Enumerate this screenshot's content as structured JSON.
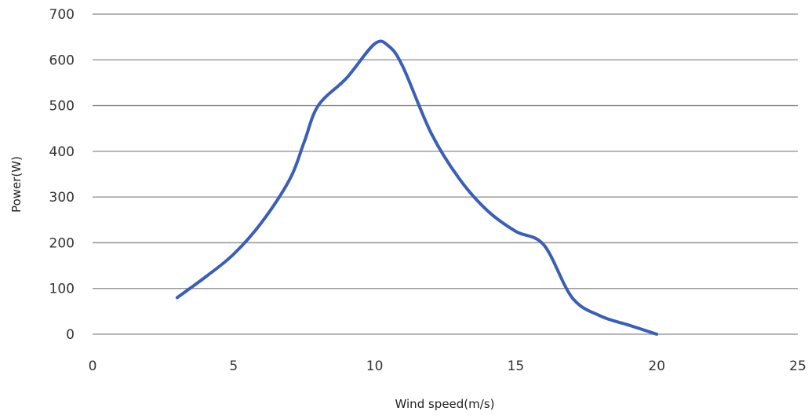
{
  "chart_data": {
    "type": "line",
    "title": "",
    "xlabel": "Wind speed(m/s)",
    "ylabel": "Power(W)",
    "xlim": [
      0,
      25
    ],
    "ylim": [
      0,
      700
    ],
    "xticks": [
      0,
      5,
      10,
      15,
      20,
      25
    ],
    "yticks": [
      0,
      100,
      200,
      300,
      400,
      500,
      600,
      700
    ],
    "grid": "horizontal",
    "legend": "none",
    "series": [
      {
        "color": "#3a5fb4",
        "x": [
          3,
          4,
          5,
          6,
          7,
          7.5,
          8,
          9,
          10,
          10.5,
          11,
          12,
          13,
          14,
          15,
          16,
          17,
          18,
          19,
          20
        ],
        "y": [
          80,
          125,
          175,
          245,
          340,
          420,
          500,
          560,
          635,
          630,
          585,
          440,
          340,
          270,
          225,
          195,
          80,
          40,
          20,
          0
        ]
      }
    ]
  }
}
